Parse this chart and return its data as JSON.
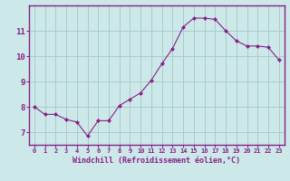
{
  "x": [
    0,
    1,
    2,
    3,
    4,
    5,
    6,
    7,
    8,
    9,
    10,
    11,
    12,
    13,
    14,
    15,
    16,
    17,
    18,
    19,
    20,
    21,
    22,
    23
  ],
  "y": [
    8.0,
    7.7,
    7.7,
    7.5,
    7.4,
    6.85,
    7.45,
    7.45,
    8.05,
    8.3,
    8.55,
    9.05,
    9.7,
    10.3,
    11.15,
    11.5,
    11.5,
    11.45,
    11.0,
    10.6,
    10.4,
    10.4,
    10.35,
    9.85
  ],
  "line_color": "#882288",
  "marker": "D",
  "marker_size": 2.0,
  "bg_color": "#cce8e8",
  "grid_color": "#aacccc",
  "xlabel": "Windchill (Refroidissement éolien,°C)",
  "xlabel_color": "#882288",
  "ylim": [
    6.5,
    12.0
  ],
  "xlim": [
    -0.5,
    23.5
  ],
  "yticks": [
    7,
    8,
    9,
    10,
    11
  ],
  "xticks": [
    0,
    1,
    2,
    3,
    4,
    5,
    6,
    7,
    8,
    9,
    10,
    11,
    12,
    13,
    14,
    15,
    16,
    17,
    18,
    19,
    20,
    21,
    22,
    23
  ],
  "tick_label_color": "#882288",
  "spine_color": "#882288",
  "axis_bg": "#cce8e8"
}
